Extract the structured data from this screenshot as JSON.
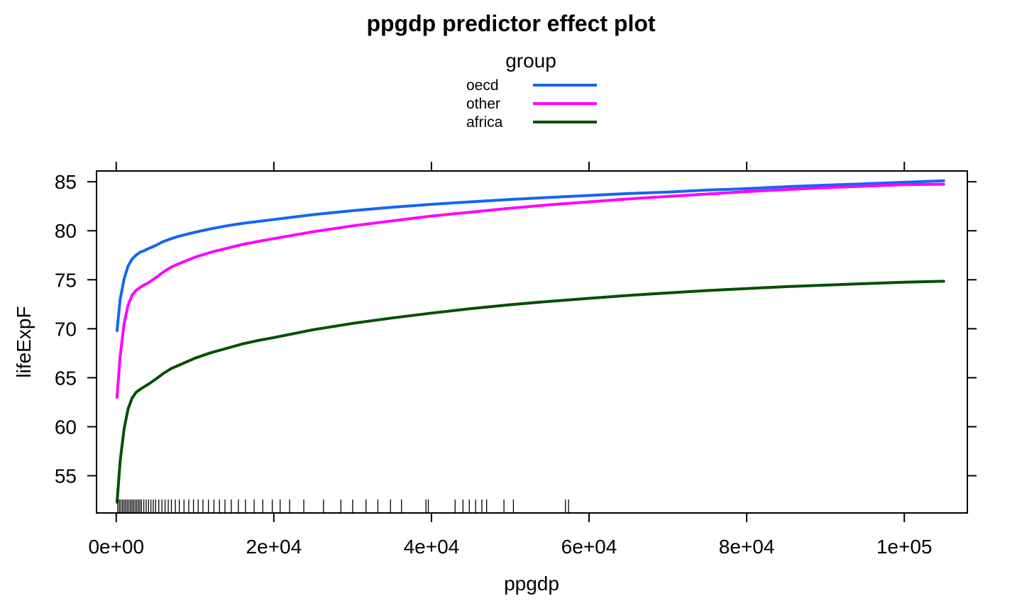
{
  "chart_data": {
    "type": "line",
    "title": "ppgdp predictor effect plot",
    "xlabel": "ppgdp",
    "ylabel": "lifeExpF",
    "xlim": [
      -2500,
      108000
    ],
    "ylim": [
      51.2,
      86.1
    ],
    "x_ticks": [
      0,
      20000,
      40000,
      60000,
      80000,
      100000
    ],
    "x_tick_labels": [
      "0e+00",
      "2e+04",
      "4e+04",
      "6e+04",
      "8e+04",
      "1e+05"
    ],
    "y_ticks": [
      55,
      60,
      65,
      70,
      75,
      80,
      85
    ],
    "y_tick_labels": [
      "55",
      "60",
      "65",
      "70",
      "75",
      "80",
      "85"
    ],
    "grid": false,
    "legend": {
      "title": "group",
      "position": "top-center",
      "entries": [
        "oecd",
        "other",
        "africa"
      ]
    },
    "series": [
      {
        "name": "oecd",
        "color": "#1566F0",
        "x": [
          100,
          500,
          1000,
          1500,
          2000,
          2500,
          3000,
          3500,
          4000,
          5000,
          6000,
          7000,
          8000,
          10000,
          12000,
          14000,
          16000,
          18000,
          20000,
          25000,
          30000,
          35000,
          40000,
          45000,
          50000,
          55000,
          60000,
          65000,
          70000,
          75000,
          80000,
          85000,
          90000,
          95000,
          100000,
          105000
        ],
        "y": [
          69.8,
          73.0,
          75.1,
          76.4,
          77.1,
          77.5,
          77.8,
          77.95,
          78.15,
          78.5,
          78.9,
          79.2,
          79.45,
          79.85,
          80.2,
          80.5,
          80.75,
          80.95,
          81.15,
          81.65,
          82.05,
          82.4,
          82.7,
          82.95,
          83.2,
          83.4,
          83.6,
          83.8,
          83.95,
          84.15,
          84.3,
          84.5,
          84.65,
          84.8,
          84.95,
          85.1
        ]
      },
      {
        "name": "other",
        "color": "#FF00FF",
        "x": [
          100,
          500,
          1000,
          1500,
          2000,
          2500,
          3000,
          3500,
          4000,
          5000,
          6000,
          7000,
          8000,
          10000,
          12000,
          14000,
          16000,
          18000,
          20000,
          25000,
          30000,
          35000,
          40000,
          45000,
          50000,
          55000,
          60000,
          65000,
          70000,
          75000,
          80000,
          85000,
          90000,
          95000,
          100000,
          105000
        ],
        "y": [
          63.0,
          67.2,
          70.5,
          72.4,
          73.4,
          73.9,
          74.2,
          74.45,
          74.65,
          75.2,
          75.8,
          76.3,
          76.65,
          77.3,
          77.8,
          78.2,
          78.6,
          78.9,
          79.2,
          79.9,
          80.5,
          81.0,
          81.5,
          81.9,
          82.3,
          82.65,
          82.95,
          83.25,
          83.5,
          83.75,
          84.0,
          84.2,
          84.4,
          84.55,
          84.7,
          84.75
        ]
      },
      {
        "name": "africa",
        "color": "#005000",
        "x": [
          100,
          500,
          1000,
          1500,
          2000,
          2500,
          3000,
          3500,
          4000,
          5000,
          6000,
          7000,
          8000,
          10000,
          12000,
          14000,
          16000,
          18000,
          20000,
          25000,
          30000,
          35000,
          40000,
          45000,
          50000,
          55000,
          60000,
          65000,
          70000,
          75000,
          80000,
          85000,
          90000,
          95000,
          100000,
          105000
        ],
        "y": [
          52.3,
          56.5,
          59.8,
          61.8,
          62.9,
          63.5,
          63.8,
          64.05,
          64.3,
          64.85,
          65.45,
          65.95,
          66.3,
          67.0,
          67.55,
          68.0,
          68.45,
          68.8,
          69.1,
          69.9,
          70.55,
          71.1,
          71.6,
          72.05,
          72.45,
          72.8,
          73.1,
          73.4,
          73.65,
          73.9,
          74.1,
          74.3,
          74.45,
          74.6,
          74.75,
          74.85
        ]
      }
    ],
    "rug_x": [
      200,
      400,
      600,
      800,
      1000,
      1200,
      1400,
      1600,
      1800,
      2000,
      2200,
      2400,
      2600,
      2800,
      3000,
      3200,
      3500,
      3800,
      4100,
      4400,
      4700,
      5000,
      5400,
      5800,
      6200,
      6600,
      7000,
      7500,
      8000,
      8600,
      9200,
      9800,
      10400,
      11000,
      11700,
      12400,
      13100,
      13800,
      14600,
      15500,
      16400,
      17500,
      18600,
      19800,
      20800,
      22000,
      23800,
      26300,
      28500,
      30000,
      31700,
      33200,
      34800,
      36200,
      39300,
      39600,
      43000,
      44000,
      44800,
      45600,
      46400,
      47000,
      49200,
      50400,
      57000,
      57400
    ]
  }
}
